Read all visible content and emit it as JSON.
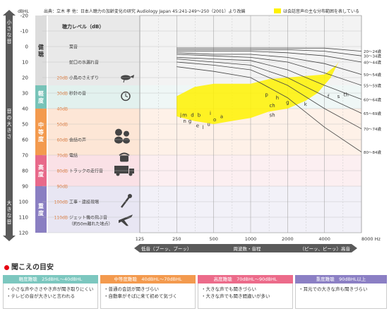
{
  "header": {
    "source": "出典：立木 孝 他：日本人聴力の加齢変化の研究 Audiology Japan 45:241-249～250（2001）より改編",
    "legend_label": "は会話音声の主な分布範囲を表している"
  },
  "left_axis": {
    "unit": "dBHL",
    "quiet_label": "小さな音",
    "loud_label": "大きな音",
    "size_label": "音の大きさ"
  },
  "chart_data": {
    "type": "line",
    "title": "聴力レベル（dB）",
    "x_axis": {
      "label": "周波数・音程",
      "unit": "Hz",
      "ticks": [
        125,
        250,
        500,
        1000,
        2000,
        4000,
        8000
      ],
      "tick_labels": [
        "125",
        "250",
        "500",
        "1000",
        "2000",
        "4000",
        "8000 Hz"
      ],
      "scale": "log",
      "low_label": "低音（ブーッ、ブーッ）",
      "high_label": "（ピーッ、ピーッ）高音"
    },
    "y_axis": {
      "ticks": [
        -20,
        -10,
        0,
        10,
        20,
        30,
        40,
        50,
        60,
        70,
        80,
        90,
        100,
        110,
        120
      ],
      "ylim": [
        -20,
        120
      ],
      "inverted": true
    },
    "series": [
      {
        "name": "20～24歳",
        "x": [
          250,
          500,
          1000,
          2000,
          4000,
          8000
        ],
        "y": [
          1,
          1,
          1,
          1,
          1,
          3
        ]
      },
      {
        "name": "30～34歳",
        "x": [
          250,
          500,
          1000,
          2000,
          4000,
          8000
        ],
        "y": [
          2,
          2,
          2,
          2,
          3,
          6
        ]
      },
      {
        "name": "40～44歳",
        "x": [
          250,
          500,
          1000,
          2000,
          4000,
          8000
        ],
        "y": [
          3,
          3,
          3,
          4,
          6,
          10
        ]
      },
      {
        "name": "50～54歳",
        "x": [
          250,
          500,
          1000,
          2000,
          4000,
          8000
        ],
        "y": [
          4,
          5,
          5,
          7,
          11,
          18
        ]
      },
      {
        "name": "55～59歳",
        "x": [
          250,
          500,
          1000,
          2000,
          4000,
          8000
        ],
        "y": [
          5,
          6,
          7,
          10,
          17,
          25
        ]
      },
      {
        "name": "60～64歳",
        "x": [
          250,
          500,
          1000,
          2000,
          4000,
          8000
        ],
        "y": [
          7,
          8,
          9,
          15,
          25,
          34
        ]
      },
      {
        "name": "65～69歳",
        "x": [
          250,
          500,
          1000,
          2000,
          4000,
          8000
        ],
        "y": [
          8,
          10,
          12,
          20,
          32,
          43
        ]
      },
      {
        "name": "70～74歳",
        "x": [
          250,
          500,
          1000,
          2000,
          4000,
          8000
        ],
        "y": [
          10,
          12,
          15,
          25,
          40,
          53
        ]
      },
      {
        "name": "80～84歳",
        "x": [
          250,
          500,
          1000,
          2000,
          4000,
          8000
        ],
        "y": [
          13,
          16,
          20,
          33,
          52,
          68
        ]
      }
    ],
    "speech_region": {
      "x": [
        250,
        350,
        500,
        700,
        1000,
        1400,
        2000,
        2800,
        4000,
        5000,
        5600,
        5200,
        4500,
        3500,
        2800,
        2000,
        1400,
        1000,
        700,
        500,
        350,
        250
      ],
      "y": [
        32,
        26,
        24,
        24,
        24,
        21,
        20,
        19,
        18,
        12,
        6,
        10,
        20,
        30,
        35,
        40,
        42,
        46,
        48,
        50,
        48,
        45
      ]
    },
    "phonemes": [
      {
        "t": "j",
        "f": 270,
        "db": 44
      },
      {
        "t": "m",
        "f": 290,
        "db": 44
      },
      {
        "t": "d",
        "f": 335,
        "db": 44
      },
      {
        "t": "b",
        "f": 380,
        "db": 44
      },
      {
        "t": "n",
        "f": 290,
        "db": 48
      },
      {
        "t": "g",
        "f": 320,
        "db": 48
      },
      {
        "t": "e",
        "f": 370,
        "db": 51
      },
      {
        "t": "l",
        "f": 410,
        "db": 52
      },
      {
        "t": "u",
        "f": 455,
        "db": 50
      },
      {
        "t": "i",
        "f": 470,
        "db": 43
      },
      {
        "t": "o",
        "f": 510,
        "db": 47
      },
      {
        "t": "a",
        "f": 580,
        "db": 45
      },
      {
        "t": "p",
        "f": 1350,
        "db": 31
      },
      {
        "t": "h",
        "f": 1650,
        "db": 33
      },
      {
        "t": "ch",
        "f": 1500,
        "db": 38
      },
      {
        "t": "sh",
        "f": 1500,
        "db": 44
      },
      {
        "t": "g",
        "f": 2000,
        "db": 36
      },
      {
        "t": "k",
        "f": 2800,
        "db": 37
      },
      {
        "t": "f",
        "f": 4300,
        "db": 32
      },
      {
        "t": "s",
        "f": 5200,
        "db": 32
      },
      {
        "t": "th",
        "f": 6000,
        "db": 31
      }
    ]
  },
  "bands": [
    {
      "label": "健聴",
      "color": "#e9e9e9",
      "label_color": "#dcdcdc",
      "text_color": "#333",
      "from": -20,
      "to": 25
    },
    {
      "label": "軽度",
      "color": "#e2f1ee",
      "label_color": "#77c3b8",
      "text_color": "#fff",
      "from": 25,
      "to": 40
    },
    {
      "label": "中等度",
      "color": "#fde6d6",
      "label_color": "#f39a4e",
      "text_color": "#fff",
      "from": 40,
      "to": 70
    },
    {
      "label": "高度",
      "color": "#fae1e6",
      "label_color": "#e8698a",
      "text_color": "#fff",
      "from": 70,
      "to": 90
    },
    {
      "label": "重度",
      "color": "#e8e6f3",
      "label_color": "#8a7fc2",
      "text_color": "#fff",
      "from": 90,
      "to": 120
    }
  ],
  "sound_examples": [
    {
      "db": 0,
      "label": "葉音"
    },
    {
      "db": 10,
      "label": "蛇口の水漏れ音"
    },
    {
      "db": 20,
      "level": "20dB",
      "label": "小鳥のさえずり",
      "icon": "bird-icon"
    },
    {
      "db": 30,
      "level": "30dB",
      "label": "秒針の音",
      "icon": "clock-icon"
    },
    {
      "db": 40,
      "level": "40dB",
      "label": ""
    },
    {
      "db": 50,
      "level": "50dB",
      "label": ""
    },
    {
      "db": 60,
      "level": "60dB",
      "label": "会話の声",
      "icon": "people-icon"
    },
    {
      "db": 70,
      "level": "70dB",
      "label": "電話",
      "icon": "phone-icon"
    },
    {
      "db": 80,
      "level": "80dB",
      "label": "トラックの走行音",
      "icon": "truck-icon"
    },
    {
      "db": 90,
      "level": "90dB",
      "label": ""
    },
    {
      "db": 100,
      "level": "100dB",
      "label": "工事・建設現場",
      "icon": "drill-icon"
    },
    {
      "db": 110,
      "level": "110dB",
      "label": "ジェット機の飛ぶ音",
      "sub": "（約50m離れた地点）",
      "icon": "plane-icon"
    }
  ],
  "guide": {
    "title": "聞こえの目安",
    "categories": [
      {
        "name": "軽度難聴",
        "range": "25dBHL～40dBHL",
        "color": "#7cc7bf",
        "items": [
          "・小さな声やささやき声が聞き取りにくい",
          "・テレビの音が大きいと言われる"
        ]
      },
      {
        "name": "中等度難聴",
        "range": "40dBHL～70dBHL",
        "color": "#f39a4e",
        "items": [
          "・普通の会話が聞きづらい",
          "・自動車がそばに来て初めて気づく"
        ]
      },
      {
        "name": "高度難聴",
        "range": "70dBHL～90dBHL",
        "color": "#ec6b8a",
        "items": [
          "・大きな声でも聞きづらい",
          "・大きな声でも聞き間違いが多い"
        ]
      },
      {
        "name": "重度難聴",
        "range": "90dBHL以上",
        "color": "#8b7fc4",
        "items": [
          "・耳元での大きな声も聞きづらい"
        ]
      }
    ]
  }
}
